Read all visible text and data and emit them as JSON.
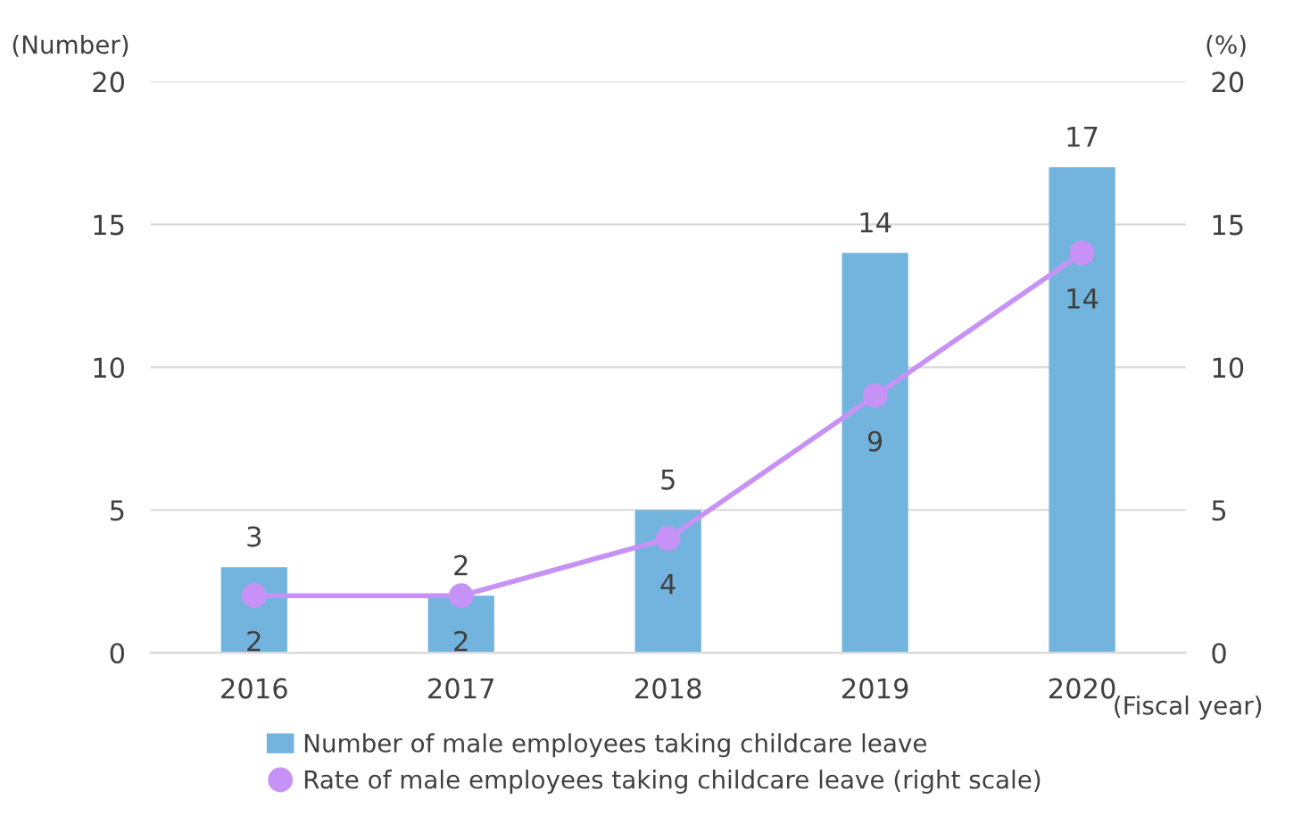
{
  "chart_data": {
    "type": "bar",
    "categories": [
      "2016",
      "2017",
      "2018",
      "2019",
      "2020"
    ],
    "series": [
      {
        "name": "Number of male employees taking childcare leave",
        "color": "#72b4de",
        "values": [
          3,
          2,
          5,
          14,
          17
        ]
      },
      {
        "name": "Rate of male employees taking childcare leave (right scale)",
        "color": "#c792f5",
        "values": [
          2,
          2,
          4,
          9,
          14
        ],
        "type": "line",
        "axis": "y2",
        "marker": "circle"
      }
    ],
    "ylabel": "(Number)",
    "y2label": "(%)",
    "xlabel": "(Fiscal year)",
    "ylim": [
      0,
      20
    ],
    "yticks": [
      0,
      5,
      10,
      15,
      20
    ],
    "y2lim": [
      0,
      20
    ],
    "y2ticks": [
      0,
      5,
      10,
      15,
      20
    ],
    "grid": "y",
    "legend": "bottom",
    "data_labels": true
  }
}
